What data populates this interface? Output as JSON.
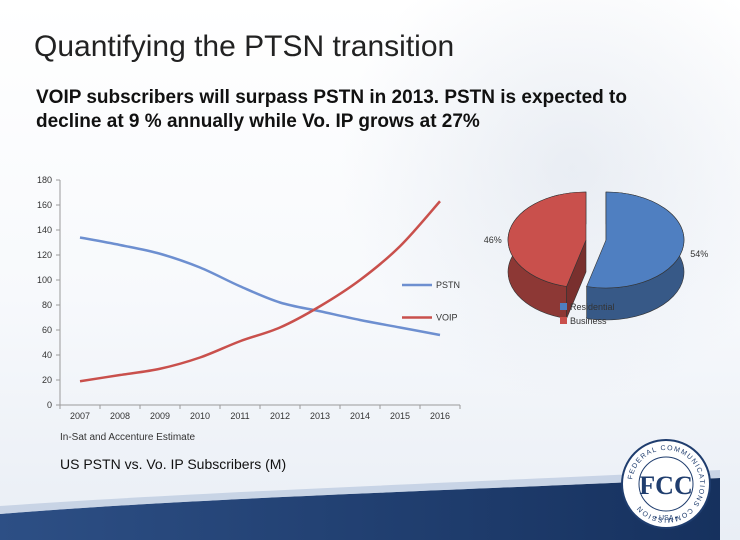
{
  "slide": {
    "title": "Quantifying the PTSN transition",
    "subtitle": "VOIP subscribers will surpass PSTN in 2013.  PSTN is expected to decline at 9 % annually while Vo. IP grows at 27%",
    "source_note": "In-Sat and Accenture Estimate",
    "caption": "US PSTN vs. Vo. IP Subscribers (M)"
  },
  "seal": {
    "text": "FEDERAL COMMUNICATIONS COMMISSION",
    "monogram": "FCC",
    "country": "USA"
  },
  "chart_data": [
    {
      "type": "line",
      "title": "",
      "xlabel": "",
      "ylabel": "",
      "x": [
        "2007",
        "2008",
        "2009",
        "2010",
        "2011",
        "2012",
        "2013",
        "2014",
        "2015",
        "2016"
      ],
      "yticks": [
        0,
        20,
        40,
        60,
        80,
        100,
        120,
        140,
        160,
        180
      ],
      "ylim": [
        0,
        180
      ],
      "grid": false,
      "legend": "right",
      "series": [
        {
          "name": "PSTN",
          "color": "#6d8fd0",
          "values": [
            134,
            128,
            121,
            110,
            95,
            82,
            75,
            68,
            62,
            56
          ]
        },
        {
          "name": "VOIP",
          "color": "#c9504c",
          "values": [
            19,
            24,
            29,
            38,
            51,
            62,
            79,
            100,
            127,
            163
          ]
        }
      ]
    },
    {
      "type": "pie",
      "title": "",
      "legend": "bottom-right",
      "slices": [
        {
          "name": "Residential",
          "label": "54%",
          "value": 54,
          "color": "#4f7fc1"
        },
        {
          "name": "Business",
          "label": "46%",
          "value": 46,
          "color": "#c9504c"
        }
      ]
    }
  ]
}
